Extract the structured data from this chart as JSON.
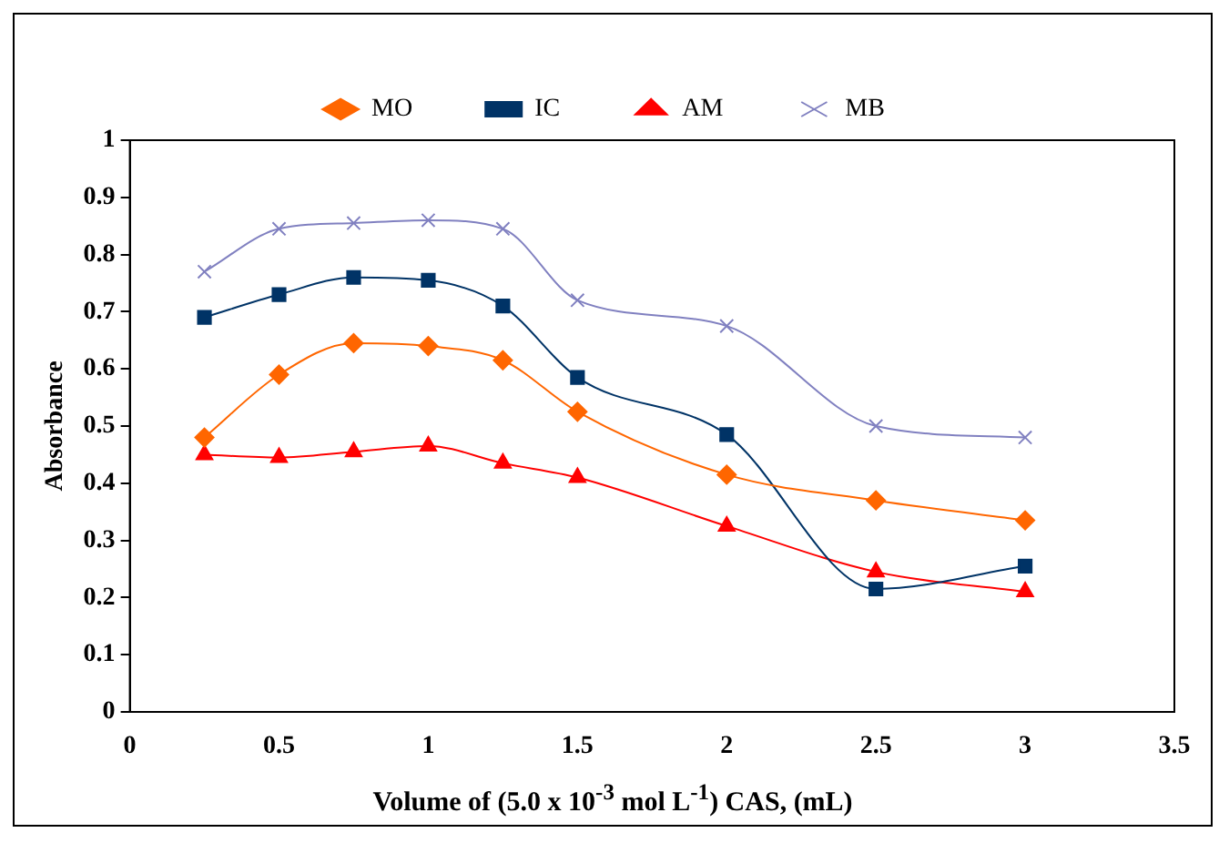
{
  "chart_data": {
    "type": "line",
    "xlabel": "Volume of (5.0 x 10$^{-3}$ mol L$^{-1}$) CAS, (mL)",
    "ylabel": "Absorbance",
    "x": [
      0.25,
      0.5,
      0.75,
      1,
      1.25,
      1.5,
      2,
      2.5,
      3
    ],
    "series": [
      {
        "name": "MO",
        "color": "#ff6600",
        "marker": "diamond",
        "values": [
          0.48,
          0.59,
          0.645,
          0.64,
          0.615,
          0.525,
          0.415,
          0.37,
          0.335
        ]
      },
      {
        "name": "IC",
        "color": "#003366",
        "marker": "square",
        "values": [
          0.69,
          0.73,
          0.76,
          0.755,
          0.71,
          0.585,
          0.485,
          0.215,
          0.255
        ]
      },
      {
        "name": "AM",
        "color": "#ff0000",
        "marker": "triangle",
        "values": [
          0.45,
          0.445,
          0.455,
          0.465,
          0.435,
          0.41,
          0.325,
          0.245,
          0.21
        ]
      },
      {
        "name": "MB",
        "color": "#8080c0",
        "marker": "cross",
        "values": [
          0.77,
          0.845,
          0.855,
          0.86,
          0.845,
          0.72,
          0.675,
          0.5,
          0.48
        ]
      }
    ],
    "xlim": [
      0,
      3.5
    ],
    "xticks": [
      0,
      0.5,
      1,
      1.5,
      2,
      2.5,
      3,
      3.5
    ],
    "ylim": [
      0,
      1
    ],
    "yticks": [
      0,
      0.1,
      0.2,
      0.3,
      0.4,
      0.5,
      0.6,
      0.7,
      0.8,
      0.9,
      1
    ],
    "legend": "top",
    "grid": false,
    "line_style": "solid"
  }
}
